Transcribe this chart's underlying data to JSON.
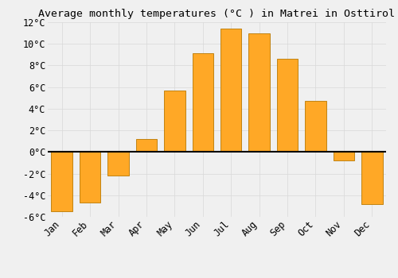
{
  "title": "Average monthly temperatures (°C ) in Matrei in Osttirol",
  "months": [
    "Jan",
    "Feb",
    "Mar",
    "Apr",
    "May",
    "Jun",
    "Jul",
    "Aug",
    "Sep",
    "Oct",
    "Nov",
    "Dec"
  ],
  "values": [
    -5.5,
    -4.7,
    -2.2,
    1.2,
    5.7,
    9.1,
    11.4,
    11.0,
    8.6,
    4.7,
    -0.8,
    -4.8
  ],
  "bar_color": "#FFA826",
  "bar_edge_color": "#B87800",
  "background_color": "#F0F0F0",
  "grid_color": "#D8D8D8",
  "ylim": [
    -6,
    12
  ],
  "yticks": [
    -6,
    -4,
    -2,
    0,
    2,
    4,
    6,
    8,
    10,
    12
  ],
  "title_fontsize": 9.5,
  "tick_fontsize": 8.5,
  "zero_line_color": "#000000",
  "bar_width": 0.75
}
